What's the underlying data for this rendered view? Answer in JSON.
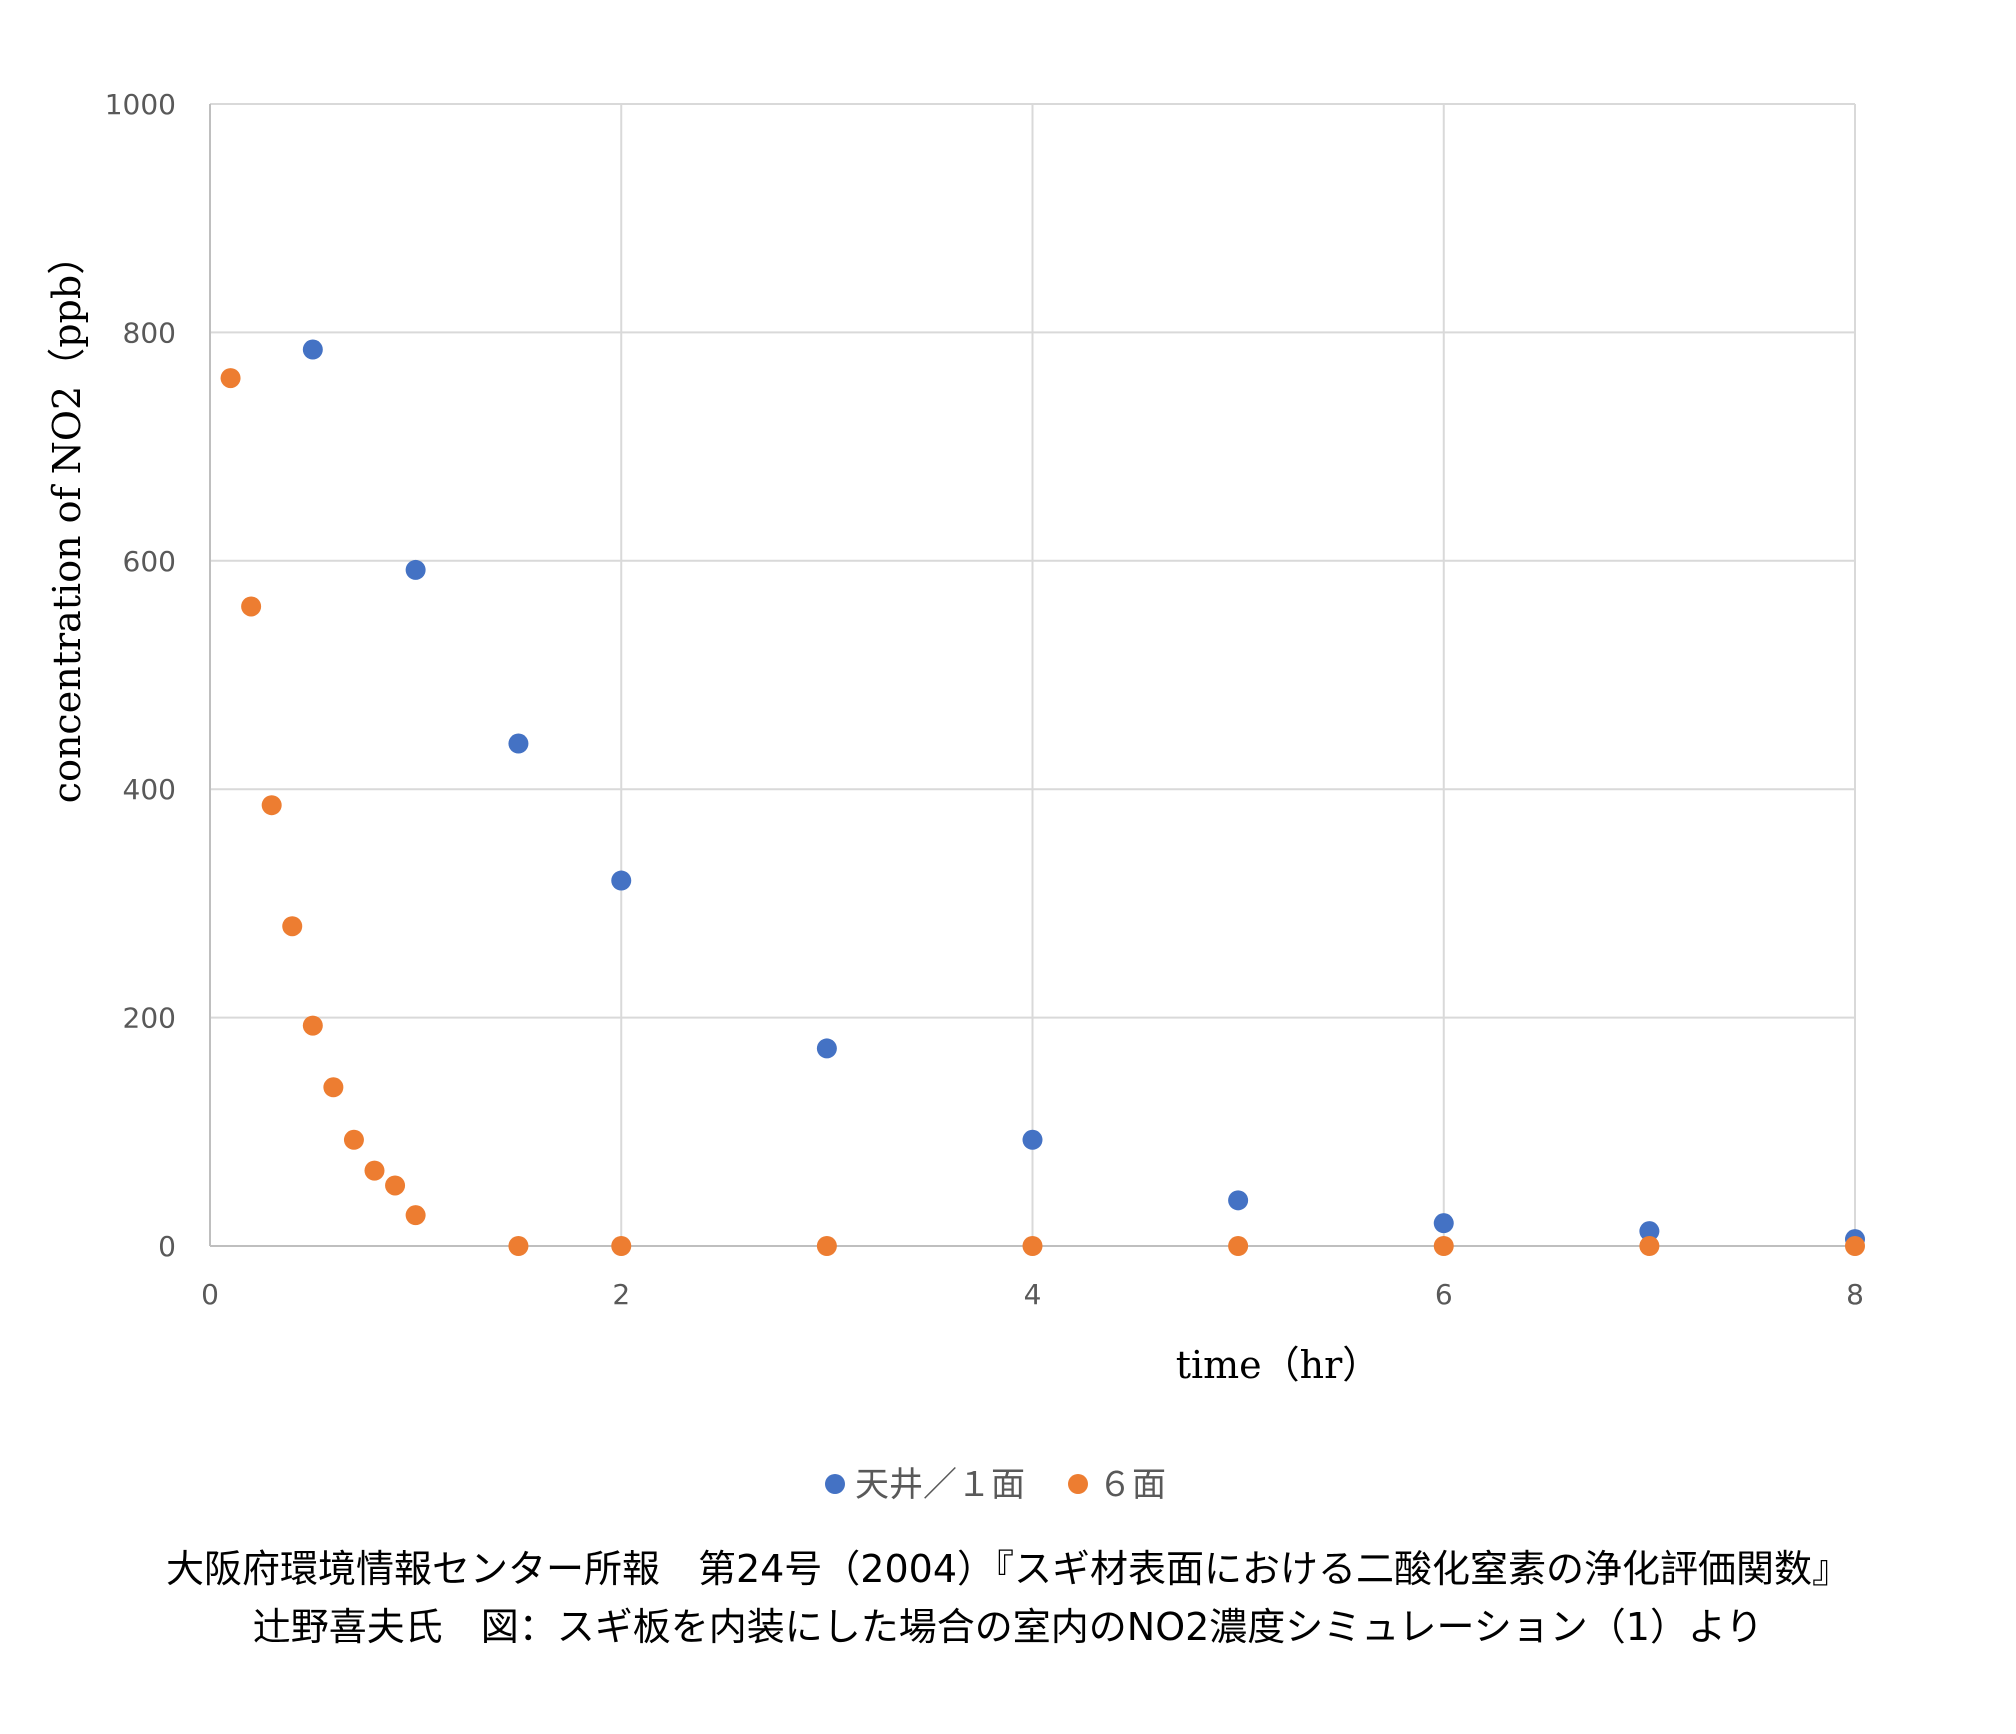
{
  "chart_data": {
    "type": "scatter",
    "xlabel": "time（hr）",
    "ylabel": "concentration of NO2（ppb）",
    "xlim": [
      0,
      8
    ],
    "ylim": [
      0,
      1000
    ],
    "x_ticks": [
      "0",
      "2",
      "4",
      "6",
      "8"
    ],
    "y_ticks": [
      "0",
      "200",
      "400",
      "600",
      "800",
      "1000"
    ],
    "grid": true,
    "legend_position": "bottom",
    "series": [
      {
        "name": "天井／１面",
        "color": "#4472C4",
        "x": [
          0.5,
          1,
          1.5,
          2,
          3,
          4,
          5,
          6,
          7,
          8
        ],
        "y": [
          785,
          592,
          440,
          320,
          173,
          93,
          40,
          20,
          13,
          6
        ]
      },
      {
        "name": "６面",
        "color": "#ED7D31",
        "x": [
          0.1,
          0.2,
          0.3,
          0.4,
          0.5,
          0.6,
          0.7,
          0.8,
          0.9,
          1,
          1.5,
          2,
          3,
          4,
          5,
          6,
          7,
          8
        ],
        "y": [
          760,
          560,
          386,
          280,
          193,
          139,
          93,
          66,
          53,
          27,
          0,
          0,
          0,
          0,
          0,
          0,
          0,
          0
        ]
      }
    ]
  },
  "caption": {
    "line1": "大阪府環境情報センター所報　第24号（2004）『スギ材表面における二酸化窒素の浄化評価関数』",
    "line2": "辻野喜夫氏　図：スギ板を内装にした場合の室内のNO2濃度シミュレーション（1）より"
  }
}
